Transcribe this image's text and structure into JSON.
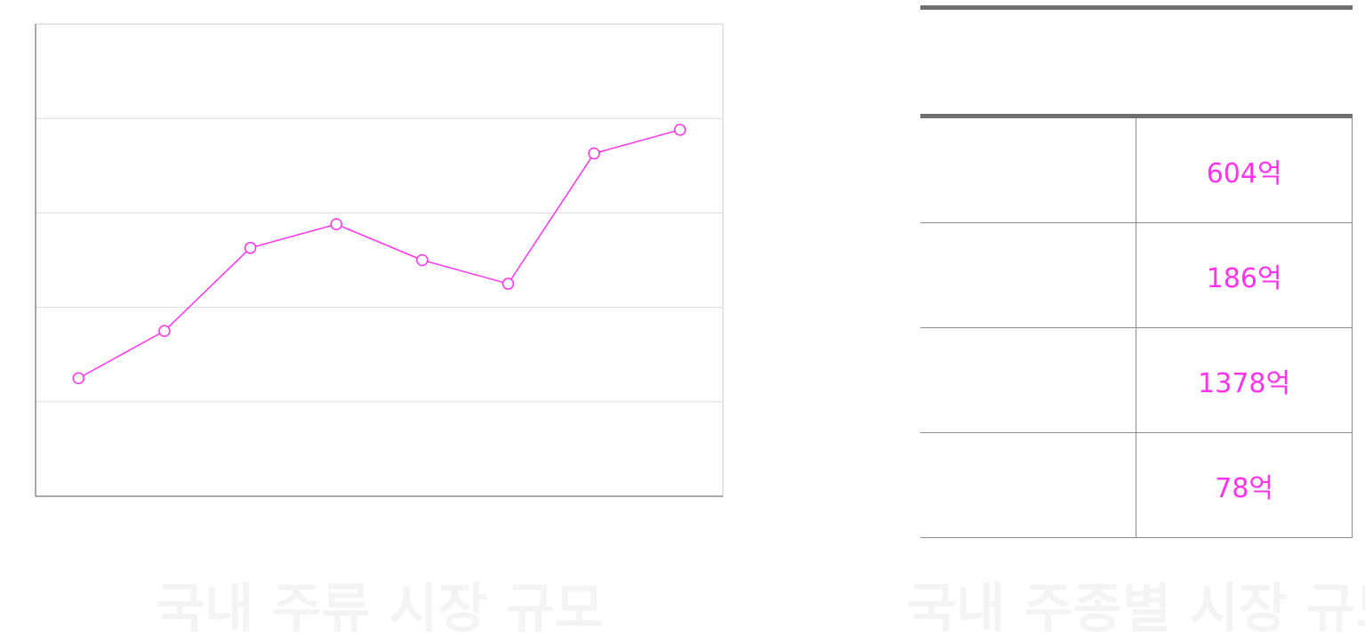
{
  "chart_data": {
    "type": "line",
    "title": "",
    "xlabel": "",
    "ylabel": "",
    "categories": [
      "",
      "",
      "",
      "",
      "",
      "",
      "",
      ""
    ],
    "values": [
      1.25,
      1.75,
      2.63,
      2.88,
      2.5,
      2.25,
      3.63,
      3.88
    ],
    "ylim": [
      0,
      5
    ],
    "grid": true,
    "series_color": "#ff33ee"
  },
  "caption_left": "국내 주류 시장 규모",
  "caption_right": "국내 주종별 시장 규모",
  "table": {
    "headers": [
      "",
      ""
    ],
    "rows": [
      {
        "kind": "",
        "value": "604억"
      },
      {
        "kind": "",
        "value": "186억"
      },
      {
        "kind": "",
        "value": "1378억"
      },
      {
        "kind": "",
        "value": "78억"
      }
    ]
  },
  "colors": {
    "accent": "#ff33ee",
    "grid": "#dddddd",
    "table_border": "#707070"
  }
}
